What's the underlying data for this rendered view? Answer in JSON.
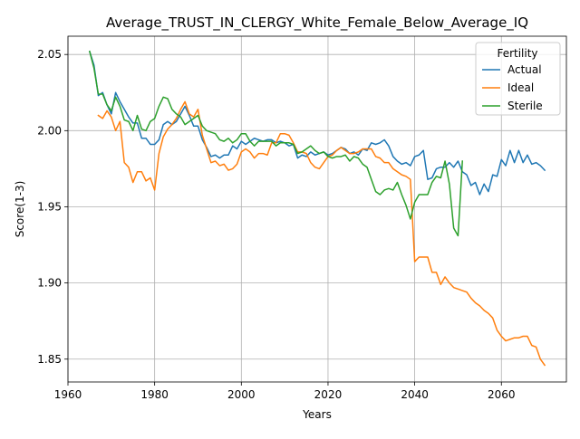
{
  "chart_data": {
    "type": "line",
    "title": "Average_TRUST_IN_CLERGY_White_Female_Below_Average_IQ",
    "xlabel": "Years",
    "ylabel": "Score(1-3)",
    "xlim": [
      1960,
      2075
    ],
    "ylim": [
      1.835,
      2.062
    ],
    "xticks": [
      1960,
      1980,
      2000,
      2020,
      2040,
      2060
    ],
    "yticks": [
      1.85,
      1.9,
      1.95,
      2.0,
      2.05
    ],
    "ytick_labels": [
      "1.85",
      "1.90",
      "1.95",
      "2.00",
      "2.05"
    ],
    "grid": true,
    "legend": {
      "title": "Fertility",
      "placement": "top-right"
    },
    "series": [
      {
        "name": "Actual",
        "color": "#1f77b4",
        "points": [
          [
            1965,
            2.052
          ],
          [
            1966,
            2.043
          ],
          [
            1967,
            2.023
          ],
          [
            1968,
            2.025
          ],
          [
            1969,
            2.017
          ],
          [
            1970,
            2.011
          ],
          [
            1971,
            2.025
          ],
          [
            1972,
            2.019
          ],
          [
            1973,
            2.014
          ],
          [
            1974,
            2.009
          ],
          [
            1975,
            2.005
          ],
          [
            1976,
            2.005
          ],
          [
            1977,
            1.995
          ],
          [
            1978,
            1.995
          ],
          [
            1979,
            1.991
          ],
          [
            1980,
            1.991
          ],
          [
            1981,
            1.994
          ],
          [
            1982,
            2.004
          ],
          [
            1983,
            2.006
          ],
          [
            1984,
            2.004
          ],
          [
            1985,
            2.006
          ],
          [
            1986,
            2.011
          ],
          [
            1987,
            2.016
          ],
          [
            1988,
            2.01
          ],
          [
            1989,
            2.003
          ],
          [
            1990,
            2.003
          ],
          [
            1991,
            1.994
          ],
          [
            1992,
            1.989
          ],
          [
            1993,
            1.983
          ],
          [
            1994,
            1.984
          ],
          [
            1995,
            1.982
          ],
          [
            1996,
            1.984
          ],
          [
            1997,
            1.984
          ],
          [
            1998,
            1.99
          ],
          [
            1999,
            1.988
          ],
          [
            2000,
            1.993
          ],
          [
            2001,
            1.991
          ],
          [
            2002,
            1.993
          ],
          [
            2003,
            1.995
          ],
          [
            2004,
            1.994
          ],
          [
            2005,
            1.993
          ],
          [
            2006,
            1.994
          ],
          [
            2007,
            1.994
          ],
          [
            2008,
            1.992
          ],
          [
            2009,
            1.993
          ],
          [
            2010,
            1.992
          ],
          [
            2011,
            1.99
          ],
          [
            2012,
            1.991
          ],
          [
            2013,
            1.982
          ],
          [
            2014,
            1.984
          ],
          [
            2015,
            1.983
          ],
          [
            2016,
            1.986
          ],
          [
            2017,
            1.984
          ],
          [
            2018,
            1.985
          ],
          [
            2019,
            1.986
          ],
          [
            2020,
            1.984
          ],
          [
            2021,
            1.985
          ],
          [
            2022,
            1.987
          ],
          [
            2023,
            1.989
          ],
          [
            2024,
            1.988
          ],
          [
            2025,
            1.985
          ],
          [
            2026,
            1.986
          ],
          [
            2027,
            1.984
          ],
          [
            2028,
            1.988
          ],
          [
            2029,
            1.987
          ],
          [
            2030,
            1.992
          ],
          [
            2031,
            1.991
          ],
          [
            2032,
            1.992
          ],
          [
            2033,
            1.994
          ],
          [
            2034,
            1.99
          ],
          [
            2035,
            1.983
          ],
          [
            2036,
            1.98
          ],
          [
            2037,
            1.978
          ],
          [
            2038,
            1.979
          ],
          [
            2039,
            1.977
          ],
          [
            2040,
            1.983
          ],
          [
            2041,
            1.984
          ],
          [
            2042,
            1.987
          ],
          [
            2043,
            1.968
          ],
          [
            2044,
            1.969
          ],
          [
            2045,
            1.975
          ],
          [
            2046,
            1.976
          ],
          [
            2047,
            1.976
          ],
          [
            2048,
            1.979
          ],
          [
            2049,
            1.976
          ],
          [
            2050,
            1.98
          ],
          [
            2051,
            1.973
          ],
          [
            2052,
            1.971
          ],
          [
            2053,
            1.964
          ],
          [
            2054,
            1.966
          ],
          [
            2055,
            1.958
          ],
          [
            2056,
            1.965
          ],
          [
            2057,
            1.96
          ],
          [
            2058,
            1.971
          ],
          [
            2059,
            1.97
          ],
          [
            2060,
            1.981
          ],
          [
            2061,
            1.977
          ],
          [
            2062,
            1.987
          ],
          [
            2063,
            1.979
          ],
          [
            2064,
            1.987
          ],
          [
            2065,
            1.979
          ],
          [
            2066,
            1.984
          ],
          [
            2067,
            1.978
          ],
          [
            2068,
            1.979
          ],
          [
            2069,
            1.977
          ],
          [
            2070,
            1.974
          ]
        ]
      },
      {
        "name": "Ideal",
        "color": "#ff7f0e",
        "points": [
          [
            1967,
            2.01
          ],
          [
            1968,
            2.008
          ],
          [
            1969,
            2.013
          ],
          [
            1970,
            2.009
          ],
          [
            1971,
            2.0
          ],
          [
            1972,
            2.006
          ],
          [
            1973,
            1.979
          ],
          [
            1974,
            1.976
          ],
          [
            1975,
            1.966
          ],
          [
            1976,
            1.973
          ],
          [
            1977,
            1.973
          ],
          [
            1978,
            1.967
          ],
          [
            1979,
            1.969
          ],
          [
            1980,
            1.961
          ],
          [
            1981,
            1.985
          ],
          [
            1982,
            1.996
          ],
          [
            1983,
            2.001
          ],
          [
            1984,
            2.004
          ],
          [
            1985,
            2.008
          ],
          [
            1986,
            2.014
          ],
          [
            1987,
            2.019
          ],
          [
            1988,
            2.011
          ],
          [
            1989,
            2.009
          ],
          [
            1990,
            2.014
          ],
          [
            1991,
            1.997
          ],
          [
            1992,
            1.988
          ],
          [
            1993,
            1.979
          ],
          [
            1994,
            1.98
          ],
          [
            1995,
            1.977
          ],
          [
            1996,
            1.978
          ],
          [
            1997,
            1.974
          ],
          [
            1998,
            1.975
          ],
          [
            1999,
            1.978
          ],
          [
            2000,
            1.986
          ],
          [
            2001,
            1.988
          ],
          [
            2002,
            1.986
          ],
          [
            2003,
            1.982
          ],
          [
            2004,
            1.985
          ],
          [
            2005,
            1.985
          ],
          [
            2006,
            1.984
          ],
          [
            2007,
            1.992
          ],
          [
            2008,
            1.992
          ],
          [
            2009,
            1.998
          ],
          [
            2010,
            1.998
          ],
          [
            2011,
            1.997
          ],
          [
            2012,
            1.992
          ],
          [
            2013,
            1.986
          ],
          [
            2014,
            1.986
          ],
          [
            2015,
            1.985
          ],
          [
            2016,
            1.979
          ],
          [
            2017,
            1.976
          ],
          [
            2018,
            1.975
          ],
          [
            2019,
            1.979
          ],
          [
            2020,
            1.983
          ],
          [
            2021,
            1.984
          ],
          [
            2022,
            1.987
          ],
          [
            2023,
            1.989
          ],
          [
            2024,
            1.987
          ],
          [
            2025,
            1.985
          ],
          [
            2026,
            1.985
          ],
          [
            2027,
            1.986
          ],
          [
            2028,
            1.988
          ],
          [
            2029,
            1.988
          ],
          [
            2030,
            1.988
          ],
          [
            2031,
            1.983
          ],
          [
            2032,
            1.982
          ],
          [
            2033,
            1.979
          ],
          [
            2034,
            1.979
          ],
          [
            2035,
            1.975
          ],
          [
            2036,
            1.973
          ],
          [
            2037,
            1.971
          ],
          [
            2038,
            1.97
          ],
          [
            2039,
            1.968
          ],
          [
            2040,
            1.914
          ],
          [
            2041,
            1.917
          ],
          [
            2042,
            1.917
          ],
          [
            2043,
            1.917
          ],
          [
            2044,
            1.907
          ],
          [
            2045,
            1.907
          ],
          [
            2046,
            1.899
          ],
          [
            2047,
            1.904
          ],
          [
            2048,
            1.9
          ],
          [
            2049,
            1.897
          ],
          [
            2050,
            1.896
          ],
          [
            2051,
            1.895
          ],
          [
            2052,
            1.894
          ],
          [
            2053,
            1.89
          ],
          [
            2054,
            1.887
          ],
          [
            2055,
            1.885
          ],
          [
            2056,
            1.882
          ],
          [
            2057,
            1.88
          ],
          [
            2058,
            1.877
          ],
          [
            2059,
            1.869
          ],
          [
            2060,
            1.865
          ],
          [
            2061,
            1.862
          ],
          [
            2062,
            1.863
          ],
          [
            2063,
            1.864
          ],
          [
            2064,
            1.864
          ],
          [
            2065,
            1.865
          ],
          [
            2066,
            1.865
          ],
          [
            2067,
            1.859
          ],
          [
            2068,
            1.858
          ],
          [
            2069,
            1.85
          ],
          [
            2070,
            1.846
          ]
        ]
      },
      {
        "name": "Sterile",
        "color": "#2ca02c",
        "points": [
          [
            1965,
            2.052
          ],
          [
            1966,
            2.041
          ],
          [
            1967,
            2.024
          ],
          [
            1968,
            2.024
          ],
          [
            1969,
            2.017
          ],
          [
            1970,
            2.013
          ],
          [
            1971,
            2.022
          ],
          [
            1972,
            2.016
          ],
          [
            1973,
            2.007
          ],
          [
            1974,
            2.006
          ],
          [
            1975,
            2.0
          ],
          [
            1976,
            2.01
          ],
          [
            1977,
            2.001
          ],
          [
            1978,
            2.0
          ],
          [
            1979,
            2.006
          ],
          [
            1980,
            2.008
          ],
          [
            1981,
            2.016
          ],
          [
            1982,
            2.022
          ],
          [
            1983,
            2.021
          ],
          [
            1984,
            2.014
          ],
          [
            1985,
            2.011
          ],
          [
            1986,
            2.009
          ],
          [
            1987,
            2.004
          ],
          [
            1988,
            2.006
          ],
          [
            1989,
            2.008
          ],
          [
            1990,
            2.01
          ],
          [
            1991,
            2.003
          ],
          [
            1992,
            2.0
          ],
          [
            1993,
            1.999
          ],
          [
            1994,
            1.998
          ],
          [
            1995,
            1.994
          ],
          [
            1996,
            1.993
          ],
          [
            1997,
            1.995
          ],
          [
            1998,
            1.992
          ],
          [
            1999,
            1.994
          ],
          [
            2000,
            1.998
          ],
          [
            2001,
            1.998
          ],
          [
            2002,
            1.993
          ],
          [
            2003,
            1.99
          ],
          [
            2004,
            1.993
          ],
          [
            2005,
            1.993
          ],
          [
            2006,
            1.993
          ],
          [
            2007,
            1.993
          ],
          [
            2008,
            1.99
          ],
          [
            2009,
            1.992
          ],
          [
            2010,
            1.992
          ],
          [
            2011,
            1.992
          ],
          [
            2012,
            1.991
          ],
          [
            2013,
            1.985
          ],
          [
            2014,
            1.986
          ],
          [
            2015,
            1.988
          ],
          [
            2016,
            1.99
          ],
          [
            2017,
            1.987
          ],
          [
            2018,
            1.985
          ],
          [
            2019,
            1.986
          ],
          [
            2020,
            1.983
          ],
          [
            2021,
            1.982
          ],
          [
            2022,
            1.983
          ],
          [
            2023,
            1.983
          ],
          [
            2024,
            1.984
          ],
          [
            2025,
            1.98
          ],
          [
            2026,
            1.983
          ],
          [
            2027,
            1.982
          ],
          [
            2028,
            1.978
          ],
          [
            2029,
            1.976
          ],
          [
            2030,
            1.968
          ],
          [
            2031,
            1.96
          ],
          [
            2032,
            1.958
          ],
          [
            2033,
            1.961
          ],
          [
            2034,
            1.962
          ],
          [
            2035,
            1.961
          ],
          [
            2036,
            1.966
          ],
          [
            2037,
            1.958
          ],
          [
            2038,
            1.951
          ],
          [
            2039,
            1.942
          ],
          [
            2040,
            1.953
          ],
          [
            2041,
            1.958
          ],
          [
            2042,
            1.958
          ],
          [
            2043,
            1.958
          ],
          [
            2044,
            1.966
          ],
          [
            2045,
            1.97
          ],
          [
            2046,
            1.969
          ],
          [
            2047,
            1.98
          ],
          [
            2048,
            1.965
          ],
          [
            2049,
            1.936
          ],
          [
            2050,
            1.931
          ],
          [
            2051,
            1.98
          ]
        ]
      }
    ]
  }
}
